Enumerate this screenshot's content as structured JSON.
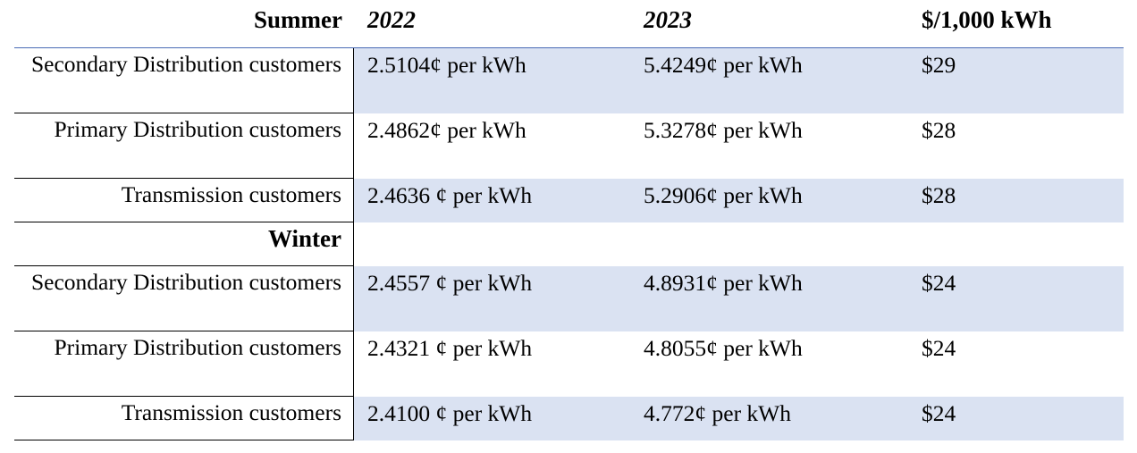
{
  "header": {
    "season": "Summer",
    "col_2022": "2022",
    "col_2023": "2023",
    "col_cost": "$/1,000 kWh"
  },
  "summer_rows": [
    {
      "label": "Secondary Distribution customers",
      "v2022": "2.5104¢ per kWh",
      "v2023": "5.4249¢ per kWh",
      "cost": "$29"
    },
    {
      "label": "Primary Distribution customers",
      "v2022": "2.4862¢ per kWh",
      "v2023": "5.3278¢ per kWh",
      "cost": "$28"
    },
    {
      "label": "Transmission customers",
      "v2022": "2.4636 ¢ per kWh",
      "v2023": "5.2906¢ per kWh",
      "cost": "$28"
    }
  ],
  "winter_label": "Winter",
  "winter_rows": [
    {
      "label": "Secondary Distribution customers",
      "v2022": "2.4557 ¢ per kWh",
      "v2023": "4.8931¢ per kWh",
      "cost": "$24"
    },
    {
      "label": "Primary Distribution customers",
      "v2022": "2.4321 ¢ per kWh",
      "v2023": "4.8055¢ per kWh",
      "cost": "$24"
    },
    {
      "label": "Transmission customers",
      "v2022": "2.4100 ¢ per kWh",
      "v2023": "4.772¢ per kWh",
      "cost": "$24"
    }
  ],
  "colors": {
    "shade": "#dae2f2",
    "header_rule": "#4a6bb5"
  }
}
